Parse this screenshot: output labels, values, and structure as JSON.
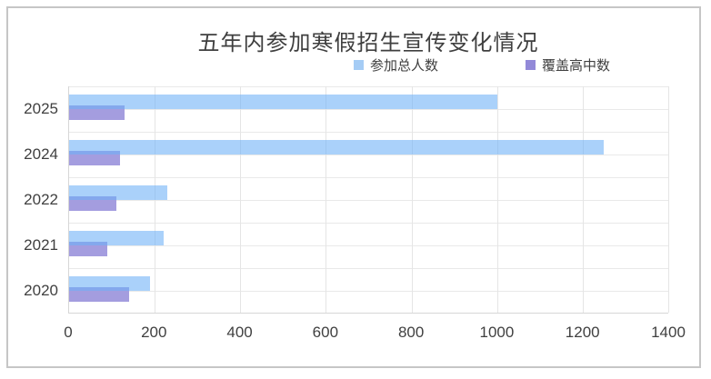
{
  "window": {
    "background": "#FFFFFF",
    "frame_border_color": "#C6C6C6"
  },
  "chart_data": {
    "type": "bar",
    "orientation": "horizontal",
    "title": "五年内参加寒假招生宣传变化情况",
    "categories": [
      "2025",
      "2024",
      "2022",
      "2021",
      "2020"
    ],
    "series": [
      {
        "name": "参加总人数",
        "values": [
          1000,
          1250,
          230,
          220,
          190
        ],
        "apparent_color": "#ADD2FA",
        "fill": "rgba(109,175,246,0.58)",
        "legend_color": "#A5CCF5"
      },
      {
        "name": "覆盖高中数",
        "values": [
          130,
          120,
          110,
          90,
          140
        ],
        "apparent_color": "#A49DDF",
        "fill": "#A49DDF",
        "legend_color": "#9289D8"
      }
    ],
    "xlabel": "",
    "ylabel": "",
    "xlim": [
      0,
      1400
    ],
    "x_ticks": [
      0,
      200,
      400,
      600,
      800,
      1000,
      1200,
      1400
    ],
    "grid": "both",
    "legend_position": "top-center",
    "gridline_color": "#E9E9E9",
    "axis_line_color": "#D6D6D6",
    "tick_label_color": "#404040",
    "title_color": "#3F3F3F",
    "overlap_blend_color": "#85A8EC"
  }
}
